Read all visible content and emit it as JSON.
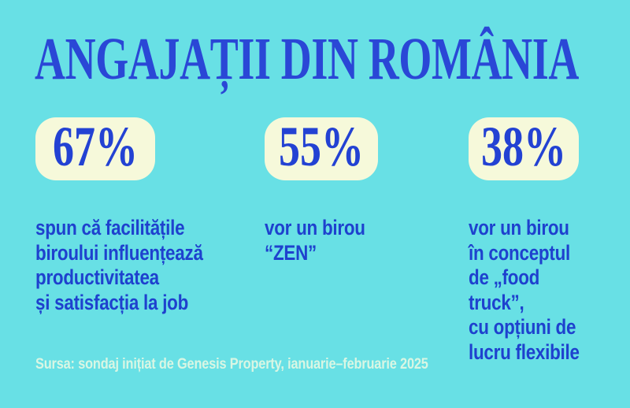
{
  "title": "ANGAJAȚII DIN ROMÂNIA",
  "colors": {
    "background": "#68E0E5",
    "title_blue": "#2A47D6",
    "body_blue": "#1E41CE",
    "card_cream": "#F6F9DA",
    "source_text": "#D9F6E4"
  },
  "stats": [
    {
      "value": "67%",
      "description": "spun că facilitățile\nbiroului influențează\nproductivitatea\nși satisfacția la job"
    },
    {
      "value": "55%",
      "description": "vor un birou\n“ZEN”"
    },
    {
      "value": "38%",
      "description": "vor un birou\nîn conceptul\nde „food truck”,\ncu opțiuni de\nlucru flexibile"
    }
  ],
  "source": "Sursa: sondaj inițiat de Genesis Property, ianuarie–februarie 2025",
  "chart_data": {
    "type": "table",
    "title": "ANGAJAȚII DIN ROMÂNIA",
    "categories": [
      "spun că facilitățile biroului influențează productivitatea și satisfacția la job",
      "vor un birou “ZEN”",
      "vor un birou în conceptul de „food truck”, cu opțiuni de lucru flexibile"
    ],
    "values": [
      67,
      55,
      38
    ],
    "unit": "%",
    "legend_position": "none",
    "source": "Sursa: sondaj inițiat de Genesis Property, ianuarie–februarie 2025"
  }
}
